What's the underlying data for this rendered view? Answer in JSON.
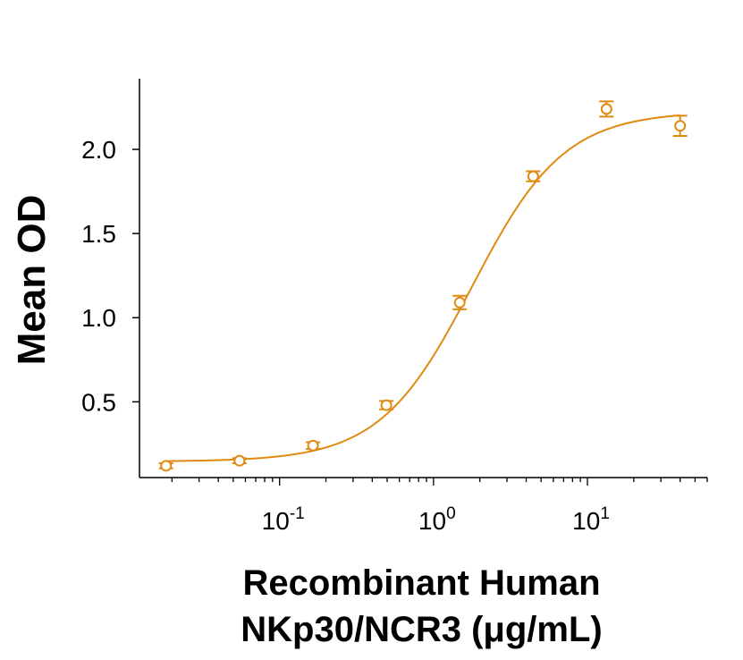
{
  "chart_data": {
    "type": "scatter",
    "title": "",
    "xlabel": [
      "Recombinant Human",
      "NKp30/NCR3 (μg/mL)"
    ],
    "ylabel": "Mean OD",
    "xscale": "log10",
    "xlim": [
      0.0123,
      60
    ],
    "ylim": [
      0.05,
      2.42
    ],
    "x_ticks": [
      {
        "value": 0.1,
        "base": "10",
        "exp": "-1"
      },
      {
        "value": 1,
        "base": "10",
        "exp": "0"
      },
      {
        "value": 10,
        "base": "10",
        "exp": "1"
      }
    ],
    "y_ticks": [
      {
        "value": 0.5,
        "label": "0.5"
      },
      {
        "value": 1.0,
        "label": "1.0"
      },
      {
        "value": 1.5,
        "label": "1.5"
      },
      {
        "value": 2.0,
        "label": "2.0"
      }
    ],
    "color": "#E08A12",
    "series": [
      {
        "name": "Mean OD",
        "x": [
          0.0183,
          0.0549,
          0.165,
          0.494,
          1.48,
          4.44,
          13.3,
          40.0
        ],
        "y": [
          0.12,
          0.15,
          0.24,
          0.48,
          1.09,
          1.84,
          2.24,
          2.14
        ],
        "error": [
          0.015,
          0.015,
          0.02,
          0.025,
          0.04,
          0.03,
          0.045,
          0.06
        ]
      }
    ],
    "fit": {
      "model": "4PL",
      "bottom": 0.145,
      "top": 2.225,
      "ec50": 1.78,
      "hill": 1.45
    }
  }
}
